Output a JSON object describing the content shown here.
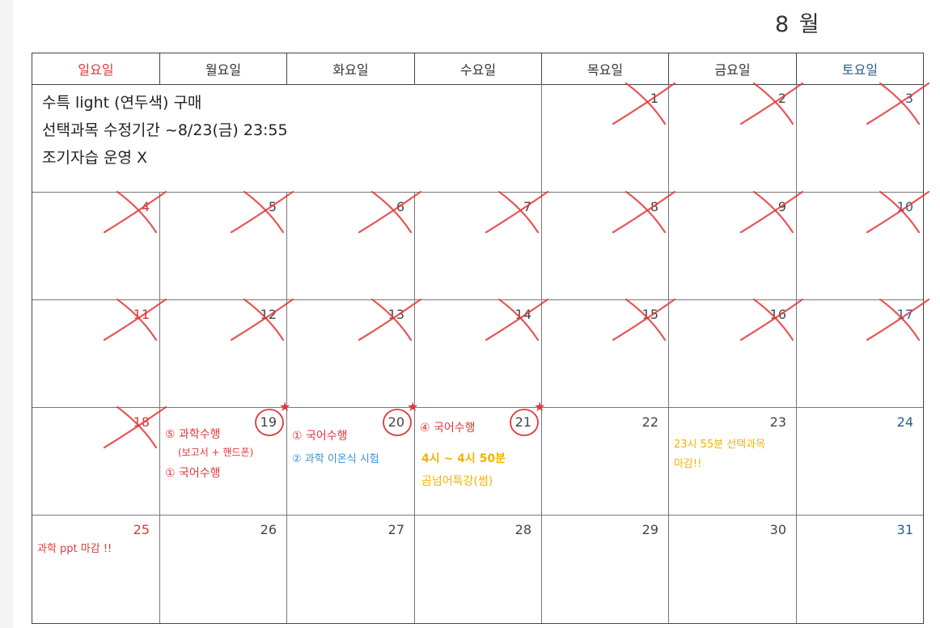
{
  "month": "8 월",
  "weekdays": [
    "일요일",
    "월요일",
    "화요일",
    "수요일",
    "목요일",
    "금요일",
    "토요일"
  ],
  "weeks": [
    [
      "",
      "",
      "",
      "",
      "1",
      "2",
      "3"
    ],
    [
      "4",
      "5",
      "6",
      "7",
      "8",
      "9",
      "10"
    ],
    [
      "11",
      "12",
      "13",
      "14",
      "15",
      "16",
      "17"
    ],
    [
      "18",
      "19",
      "20",
      "21",
      "22",
      "23",
      "24"
    ],
    [
      "25",
      "26",
      "27",
      "28",
      "29",
      "30",
      "31"
    ]
  ],
  "crossed_out_days": [
    "1",
    "2",
    "3",
    "4",
    "5",
    "6",
    "7",
    "8",
    "9",
    "10",
    "11",
    "12",
    "13",
    "14",
    "15",
    "16",
    "17",
    "18"
  ],
  "circled_days": [
    "19",
    "20",
    "21"
  ],
  "notes": {
    "top_memo": [
      "수특 light (연두색) 구매",
      "선택과목 수정기간 ~8/23(금) 23:55",
      "조기자습 운영 X"
    ],
    "d19": [
      "⑤ 과학수행",
      "(보고서 + 핸드폰)",
      "① 국어수행"
    ],
    "d20": [
      "① 국어수행",
      "② 과학 이온식 시험"
    ],
    "d21": [
      "④ 국어수행",
      "4시 ~ 4시 50분",
      "곰넘어특강(썸)"
    ],
    "d23": [
      "23시 55분 선택과목",
      "마감!!"
    ],
    "d25": [
      "과학 ppt 마감 !!"
    ]
  },
  "colors": {
    "sunday": "#d63a3a",
    "saturday": "#2a5d86",
    "cross": "#e0383a",
    "red_note": "#e0383a",
    "blue_note": "#3a8fd6",
    "yellow_note": "#f0b400"
  }
}
